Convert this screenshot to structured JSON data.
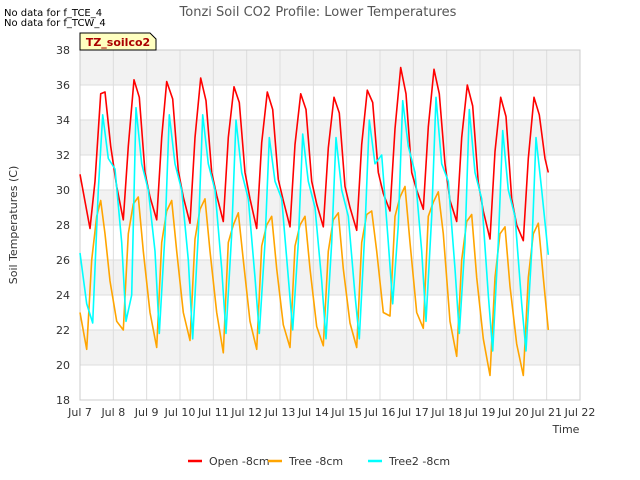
{
  "notes": [
    "No data for f_TCE_4",
    "No data for f_TCW_4"
  ],
  "tag_label": "TZ_soilco2",
  "chart_data": {
    "type": "line",
    "title": "Tonzi Soil CO2 Profile: Lower Temperatures",
    "xlabel": "Time",
    "ylabel": "Soil Temperatures (C)",
    "xlim": [
      7,
      22
    ],
    "ylim": [
      18,
      38
    ],
    "grid": true,
    "legend_position": "bottom",
    "x_ticks": [
      "Jul 7",
      "Jul 8",
      "Jul 9",
      "Jul 10",
      "Jul 11",
      "Jul 12",
      "Jul 13",
      "Jul 14",
      "Jul 15",
      "Jul 16",
      "Jul 17",
      "Jul 18",
      "Jul 19",
      "Jul 20",
      "Jul 21",
      "Jul 22"
    ],
    "y_ticks": [
      18,
      20,
      22,
      24,
      26,
      28,
      30,
      32,
      34,
      36,
      38
    ],
    "series": [
      {
        "name": "Open -8cm",
        "color": "#ff0000",
        "x": [
          7.0,
          7.3,
          7.45,
          7.62,
          7.75,
          7.92,
          8.1,
          8.3,
          8.45,
          8.62,
          8.78,
          8.95,
          9.1,
          9.3,
          9.45,
          9.6,
          9.78,
          9.95,
          10.1,
          10.3,
          10.45,
          10.62,
          10.78,
          10.95,
          11.1,
          11.3,
          11.45,
          11.62,
          11.78,
          11.95,
          12.1,
          12.3,
          12.45,
          12.62,
          12.78,
          12.95,
          13.1,
          13.3,
          13.45,
          13.62,
          13.78,
          13.95,
          14.1,
          14.3,
          14.45,
          14.62,
          14.78,
          14.95,
          15.1,
          15.3,
          15.45,
          15.62,
          15.78,
          15.95,
          16.1,
          16.3,
          16.45,
          16.62,
          16.78,
          16.95,
          17.1,
          17.3,
          17.45,
          17.62,
          17.78,
          17.95,
          18.1,
          18.3,
          18.45,
          18.62,
          18.78,
          18.95,
          19.1,
          19.3,
          19.45,
          19.62,
          19.78,
          19.95,
          20.1,
          20.3,
          20.45,
          20.62,
          20.78,
          20.95,
          21.05
        ],
        "values": [
          30.9,
          27.8,
          30.5,
          35.5,
          35.6,
          32.5,
          30.2,
          28.3,
          32.5,
          36.3,
          35.3,
          31.0,
          29.6,
          28.3,
          33.0,
          36.2,
          35.2,
          31.1,
          29.6,
          28.1,
          33.0,
          36.4,
          35.1,
          31.0,
          29.7,
          28.2,
          33.0,
          35.9,
          35.0,
          31.0,
          29.5,
          27.8,
          32.7,
          35.6,
          34.6,
          30.6,
          29.4,
          27.9,
          32.6,
          35.5,
          34.6,
          30.5,
          29.2,
          27.9,
          32.4,
          35.3,
          34.4,
          30.2,
          29.0,
          27.7,
          32.6,
          35.7,
          35.0,
          31.0,
          29.8,
          28.8,
          33.5,
          37.0,
          35.5,
          31.0,
          30.0,
          28.9,
          33.6,
          36.9,
          35.5,
          31.5,
          29.4,
          28.2,
          33.0,
          36.0,
          34.8,
          30.4,
          28.8,
          27.2,
          32.2,
          35.3,
          34.2,
          29.5,
          28.0,
          27.1,
          31.8,
          35.3,
          34.3,
          31.8,
          31.0
        ]
      },
      {
        "name": "Tree -8cm",
        "color": "#ffa500",
        "x": [
          7.0,
          7.2,
          7.35,
          7.5,
          7.62,
          7.75,
          7.9,
          8.1,
          8.3,
          8.45,
          8.6,
          8.75,
          8.9,
          9.1,
          9.3,
          9.45,
          9.6,
          9.75,
          9.9,
          10.1,
          10.3,
          10.45,
          10.6,
          10.75,
          10.9,
          11.1,
          11.3,
          11.45,
          11.6,
          11.75,
          11.9,
          12.1,
          12.3,
          12.45,
          12.6,
          12.75,
          12.9,
          13.1,
          13.3,
          13.45,
          13.6,
          13.75,
          13.9,
          14.1,
          14.3,
          14.45,
          14.6,
          14.75,
          14.9,
          15.1,
          15.3,
          15.45,
          15.6,
          15.75,
          15.9,
          16.1,
          16.3,
          16.45,
          16.6,
          16.75,
          16.9,
          17.1,
          17.3,
          17.45,
          17.6,
          17.75,
          17.9,
          18.1,
          18.3,
          18.45,
          18.6,
          18.75,
          18.9,
          19.1,
          19.3,
          19.45,
          19.6,
          19.75,
          19.9,
          20.1,
          20.3,
          20.45,
          20.6,
          20.75,
          20.9,
          21.05
        ],
        "values": [
          23.0,
          20.9,
          26.0,
          28.5,
          29.4,
          27.5,
          24.8,
          22.5,
          22.0,
          27.5,
          29.2,
          29.6,
          26.5,
          23.0,
          21.0,
          27.0,
          28.8,
          29.4,
          26.5,
          23.0,
          21.4,
          27.2,
          28.9,
          29.5,
          26.5,
          23.0,
          20.7,
          27.0,
          28.0,
          28.7,
          26.0,
          22.5,
          20.9,
          26.8,
          28.0,
          28.5,
          25.5,
          22.3,
          21.0,
          26.8,
          28.0,
          28.5,
          25.5,
          22.2,
          21.1,
          26.5,
          28.3,
          28.7,
          25.5,
          22.4,
          21.0,
          27.0,
          28.6,
          28.8,
          26.5,
          23.0,
          22.8,
          28.5,
          29.6,
          30.2,
          27.0,
          23.0,
          22.1,
          28.5,
          29.3,
          29.9,
          27.5,
          22.5,
          20.5,
          26.0,
          28.2,
          28.6,
          25.0,
          21.5,
          19.4,
          25.0,
          27.5,
          27.9,
          24.5,
          21.2,
          19.4,
          25.0,
          27.5,
          28.1,
          25.0,
          22.0
        ]
      },
      {
        "name": "Tree2 -8cm",
        "color": "#00ffff",
        "x": [
          7.0,
          7.2,
          7.38,
          7.55,
          7.68,
          7.85,
          8.05,
          8.25,
          8.38,
          8.55,
          8.68,
          8.85,
          9.05,
          9.25,
          9.38,
          9.55,
          9.68,
          9.85,
          10.05,
          10.25,
          10.38,
          10.55,
          10.68,
          10.85,
          11.05,
          11.25,
          11.38,
          11.55,
          11.68,
          11.85,
          12.05,
          12.25,
          12.38,
          12.55,
          12.68,
          12.85,
          13.05,
          13.25,
          13.38,
          13.55,
          13.68,
          13.85,
          14.05,
          14.25,
          14.38,
          14.55,
          14.68,
          14.85,
          15.05,
          15.25,
          15.38,
          15.55,
          15.68,
          15.85,
          16.05,
          16.25,
          16.38,
          16.55,
          16.68,
          16.85,
          17.05,
          17.25,
          17.38,
          17.55,
          17.68,
          17.85,
          18.05,
          18.25,
          18.38,
          18.55,
          18.68,
          18.85,
          19.05,
          19.25,
          19.38,
          19.55,
          19.68,
          19.85,
          20.05,
          20.25,
          20.38,
          20.55,
          20.68,
          20.85,
          21.05
        ],
        "values": [
          26.4,
          23.5,
          22.4,
          30.0,
          34.3,
          31.8,
          31.2,
          27.0,
          22.5,
          24.0,
          34.7,
          31.5,
          30.0,
          26.5,
          21.8,
          27.5,
          34.3,
          31.5,
          30.0,
          26.0,
          21.5,
          27.5,
          34.3,
          31.5,
          30.0,
          25.5,
          21.8,
          27.5,
          34.0,
          31.0,
          29.5,
          25.0,
          21.8,
          27.0,
          33.0,
          30.5,
          29.5,
          25.0,
          22.0,
          27.0,
          33.2,
          30.5,
          29.0,
          24.8,
          21.5,
          27.0,
          33.0,
          30.0,
          28.5,
          24.0,
          21.5,
          27.8,
          34.0,
          31.5,
          32.0,
          27.0,
          23.5,
          28.0,
          35.1,
          32.5,
          31.0,
          26.5,
          22.5,
          28.5,
          35.3,
          31.5,
          30.5,
          25.5,
          21.8,
          27.0,
          34.6,
          31.0,
          29.5,
          24.0,
          20.8,
          27.0,
          33.4,
          30.0,
          28.5,
          23.5,
          20.8,
          26.5,
          33.0,
          30.0,
          26.3
        ]
      }
    ]
  }
}
